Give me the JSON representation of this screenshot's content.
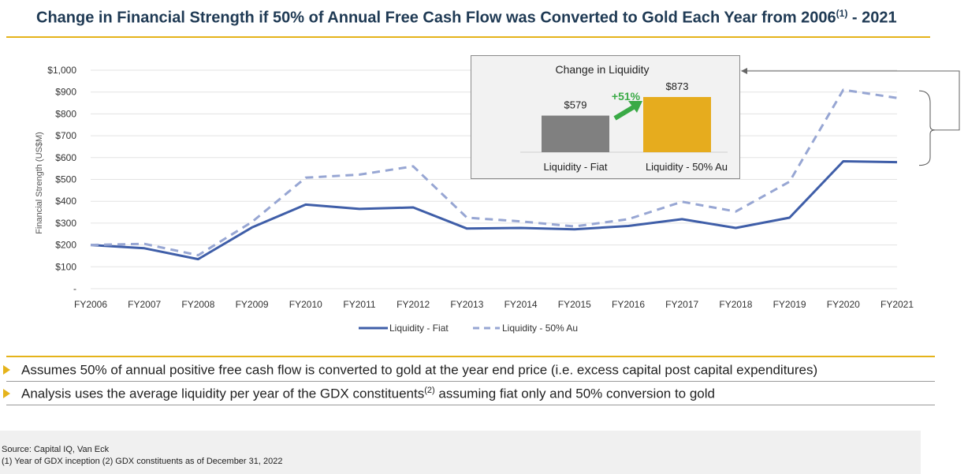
{
  "title": {
    "text": "Change in Financial Strength if 50% of Annual Free Cash Flow was Converted to Gold Each Year from 2006",
    "sup": "(1)",
    "suffix": " - 2021"
  },
  "colors": {
    "accent": "#e5b31a",
    "fiat_line": "#3f5ea8",
    "au_line": "#97a6d3",
    "fiat_bar": "#808080",
    "au_bar": "#e6ac1e",
    "change_arrow": "#3aaa46"
  },
  "chart_data": [
    {
      "type": "line",
      "title": "",
      "xlabel": "",
      "ylabel": "Financial Strength (US$M)",
      "categories": [
        "FY2006",
        "FY2007",
        "FY2008",
        "FY2009",
        "FY2010",
        "FY2011",
        "FY2012",
        "FY2013",
        "FY2014",
        "FY2015",
        "FY2016",
        "FY2017",
        "FY2018",
        "FY2019",
        "FY2020",
        "FY2021"
      ],
      "yticks": [
        0,
        100,
        200,
        300,
        400,
        500,
        600,
        700,
        800,
        900,
        1000
      ],
      "ytick_labels": [
        "-",
        "$100",
        "$200",
        "$300",
        "$400",
        "$500",
        "$600",
        "$700",
        "$800",
        "$900",
        "$1,000"
      ],
      "ylim": [
        0,
        1000
      ],
      "grid": true,
      "legend_position": "bottom",
      "series": [
        {
          "name": "Liquidity - Fiat",
          "style": "solid",
          "values": [
            200,
            185,
            135,
            280,
            385,
            365,
            372,
            275,
            278,
            272,
            287,
            318,
            278,
            325,
            583,
            579
          ]
        },
        {
          "name": "Liquidity - 50% Au",
          "style": "dashed",
          "values": [
            200,
            205,
            153,
            305,
            508,
            522,
            560,
            325,
            308,
            285,
            318,
            398,
            353,
            490,
            910,
            873
          ]
        }
      ]
    },
    {
      "type": "bar",
      "title": "Change in Liquidity",
      "categories": [
        "Liquidity - Fiat",
        "Liquidity - 50% Au"
      ],
      "values": [
        579,
        873
      ],
      "value_labels": [
        "$579",
        "$873"
      ],
      "annotation": "+51%"
    }
  ],
  "bullets": [
    {
      "text": "Assumes 50% of annual positive free cash flow is converted to gold at the year end price (i.e. excess capital post capital expenditures)",
      "sup": "",
      "tail": ""
    },
    {
      "text": "Analysis uses the average liquidity per year of the GDX constituents",
      "sup": "(2)",
      "tail": " assuming fiat only and 50% conversion to gold"
    }
  ],
  "footer": {
    "source": "Source: Capital IQ, Van Eck",
    "notes": "(1) Year of GDX inception (2) GDX constituents as of December 31, 2022"
  }
}
